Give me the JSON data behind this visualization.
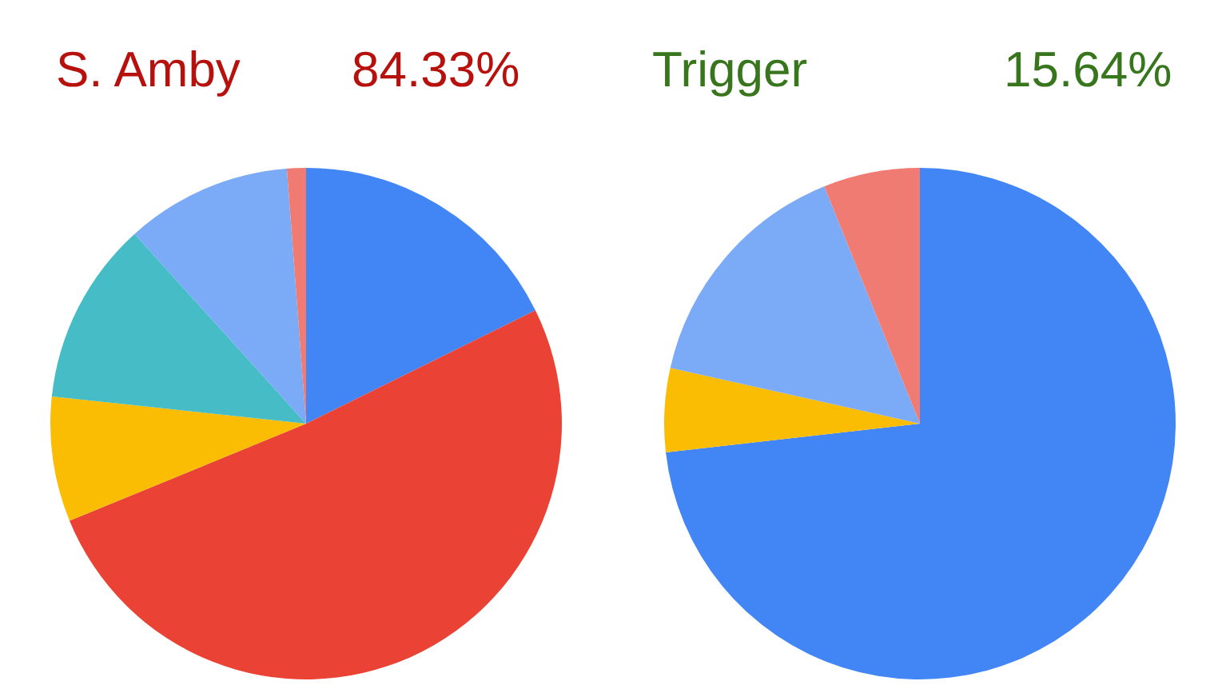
{
  "chart_data": [
    {
      "type": "pie",
      "title": "S. Amby",
      "subtitle": "84.33%",
      "categories": [
        null,
        null,
        null,
        null,
        null,
        null
      ],
      "values": [
        17.7,
        51.1,
        7.9,
        11.6,
        10.5,
        1.2
      ],
      "colors": [
        "#4285f4",
        "#ea4335",
        "#fbbc04",
        "#46bdc6",
        "#7baaf7",
        "#f07b72"
      ],
      "legend": false
    },
    {
      "type": "pie",
      "title": "Trigger",
      "subtitle": "15.64%",
      "categories": [
        null,
        null,
        null,
        null
      ],
      "values": [
        73.2,
        5.3,
        15.4,
        6.1
      ],
      "colors": [
        "#4285f4",
        "#fbbc04",
        "#7baaf7",
        "#f07b72"
      ],
      "legend": false
    }
  ]
}
